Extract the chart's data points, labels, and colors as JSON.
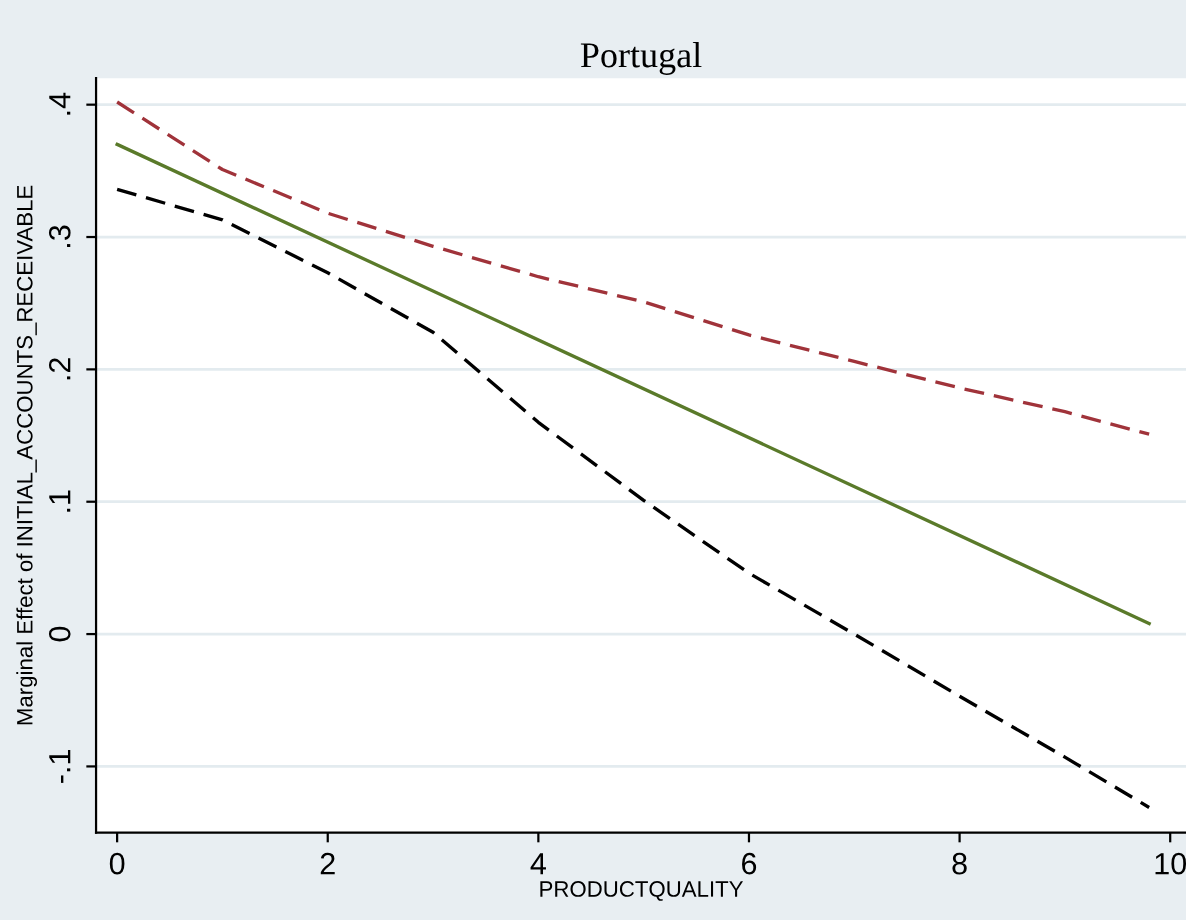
{
  "chart_data": {
    "type": "line",
    "title": "Portugal",
    "xlabel": "PRODUCTQUALITY",
    "ylabel": "Marginal Effect of INITIAL_ACCOUNTS_RECEIVABLE",
    "series": [
      {
        "color": "#a0333a",
        "line_style": "dashed",
        "x": [
          0,
          1,
          2,
          3,
          4,
          5,
          6,
          7,
          8,
          9,
          9.8
        ],
        "values": [
          0.402,
          0.351,
          0.318,
          0.293,
          0.27,
          0.251,
          0.226,
          0.206,
          0.186,
          0.168,
          0.151
        ]
      },
      {
        "color": "#5a7a2a",
        "line_style": "solid",
        "x": [
          0,
          9.8
        ],
        "values": [
          0.37,
          0.008
        ]
      },
      {
        "color": "#000000",
        "line_style": "dashed",
        "x": [
          0,
          1,
          2,
          3,
          4,
          5,
          6,
          7,
          8,
          9,
          9.8
        ],
        "values": [
          0.336,
          0.313,
          0.273,
          0.228,
          0.16,
          0.101,
          0.046,
          0.0,
          -0.047,
          -0.093,
          -0.131
        ]
      }
    ],
    "xlim": [
      -0.2,
      10.15
    ],
    "ylim": [
      -0.15,
      0.42
    ],
    "xticks": [
      0,
      2,
      4,
      6,
      8,
      10
    ],
    "yticks": [
      {
        "value": -0.1,
        "label": "-.1"
      },
      0,
      {
        "value": 0.1,
        "label": ".1"
      },
      {
        "value": 0.2,
        "label": ".2"
      },
      {
        "value": 0.3,
        "label": ".3"
      },
      {
        "value": 0.4,
        "label": ".4"
      }
    ],
    "grid": "y"
  }
}
